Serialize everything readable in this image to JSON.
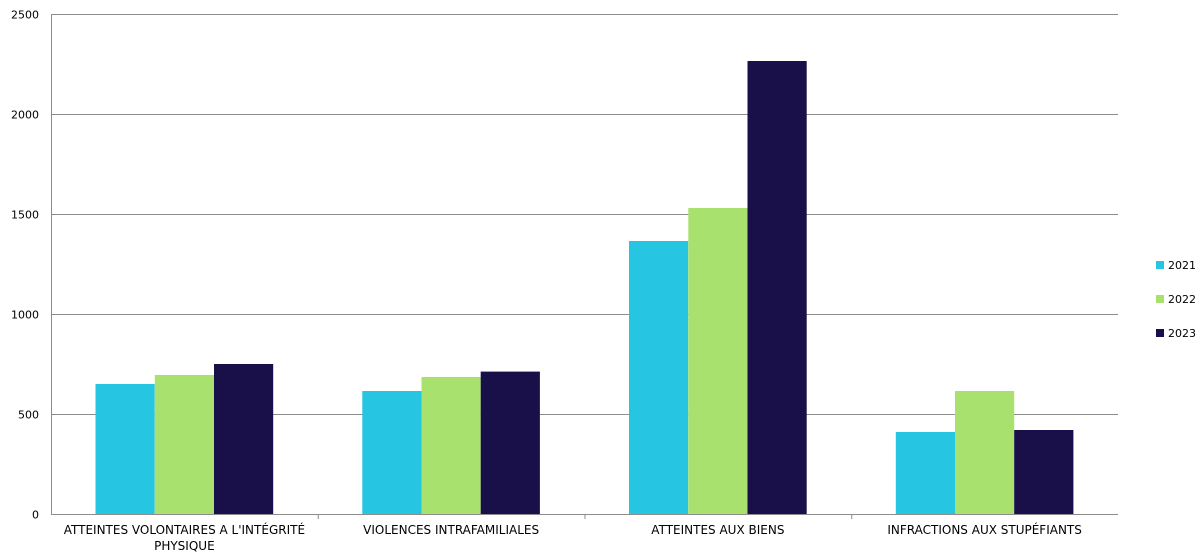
{
  "chart_data": {
    "type": "bar",
    "categories": [
      [
        "ATTEINTES VOLONTAIRES A L'INTÉGRITÉ",
        "PHYSIQUE"
      ],
      [
        "VIOLENCES INTRAFAMILIALES"
      ],
      [
        "ATTEINTES AUX BIENS"
      ],
      [
        "INFRACTIONS AUX STUPÉFIANTS"
      ]
    ],
    "series": [
      {
        "name": "2021",
        "color": "#26C6E2",
        "values": [
          650,
          615,
          1365,
          410
        ]
      },
      {
        "name": "2022",
        "color": "#A8E16E",
        "values": [
          695,
          685,
          1530,
          615
        ]
      },
      {
        "name": "2023",
        "color": "#1A1049",
        "values": [
          750,
          712,
          2265,
          420
        ]
      }
    ],
    "ylim": [
      0,
      2500
    ],
    "yticks": [
      0,
      500,
      1000,
      1500,
      2000,
      2500
    ],
    "grid": true,
    "legend": "right",
    "title": "",
    "xlabel": "",
    "ylabel": ""
  }
}
